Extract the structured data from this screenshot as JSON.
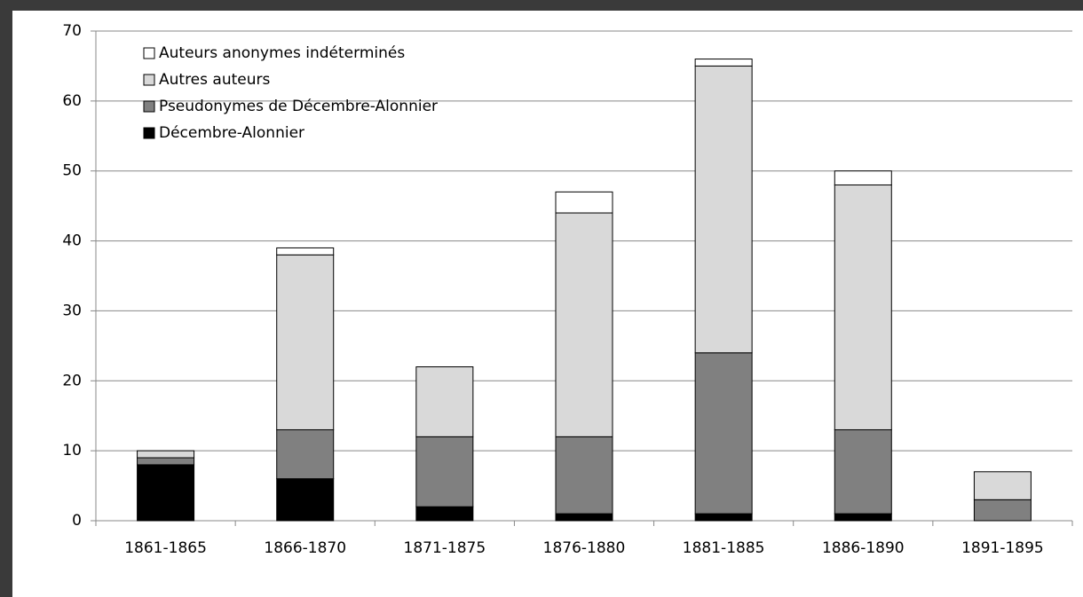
{
  "chart_data": {
    "type": "bar",
    "stacked": true,
    "categories": [
      "1861-1865",
      "1866-1870",
      "1871-1875",
      "1876-1880",
      "1881-1885",
      "1886-1890",
      "1891-1895"
    ],
    "series": [
      {
        "name": "Décembre-Alonnier",
        "color": "#000000",
        "values": [
          8,
          6,
          2,
          1,
          1,
          1,
          0
        ]
      },
      {
        "name": "Pseudonymes de Décembre-Alonnier",
        "color": "#808080",
        "values": [
          1,
          7,
          10,
          11,
          23,
          12,
          3
        ]
      },
      {
        "name": "Autres auteurs",
        "color": "#d9d9d9",
        "values": [
          1,
          25,
          10,
          32,
          41,
          35,
          4
        ]
      },
      {
        "name": "Auteurs anonymes indéterminés",
        "color": "#ffffff",
        "values": [
          0,
          1,
          0,
          3,
          1,
          2,
          0
        ]
      }
    ],
    "ylim": [
      0,
      70
    ],
    "yticks": [
      0,
      10,
      20,
      30,
      40,
      50,
      60,
      70
    ],
    "grid": true,
    "legend": "upper left"
  }
}
